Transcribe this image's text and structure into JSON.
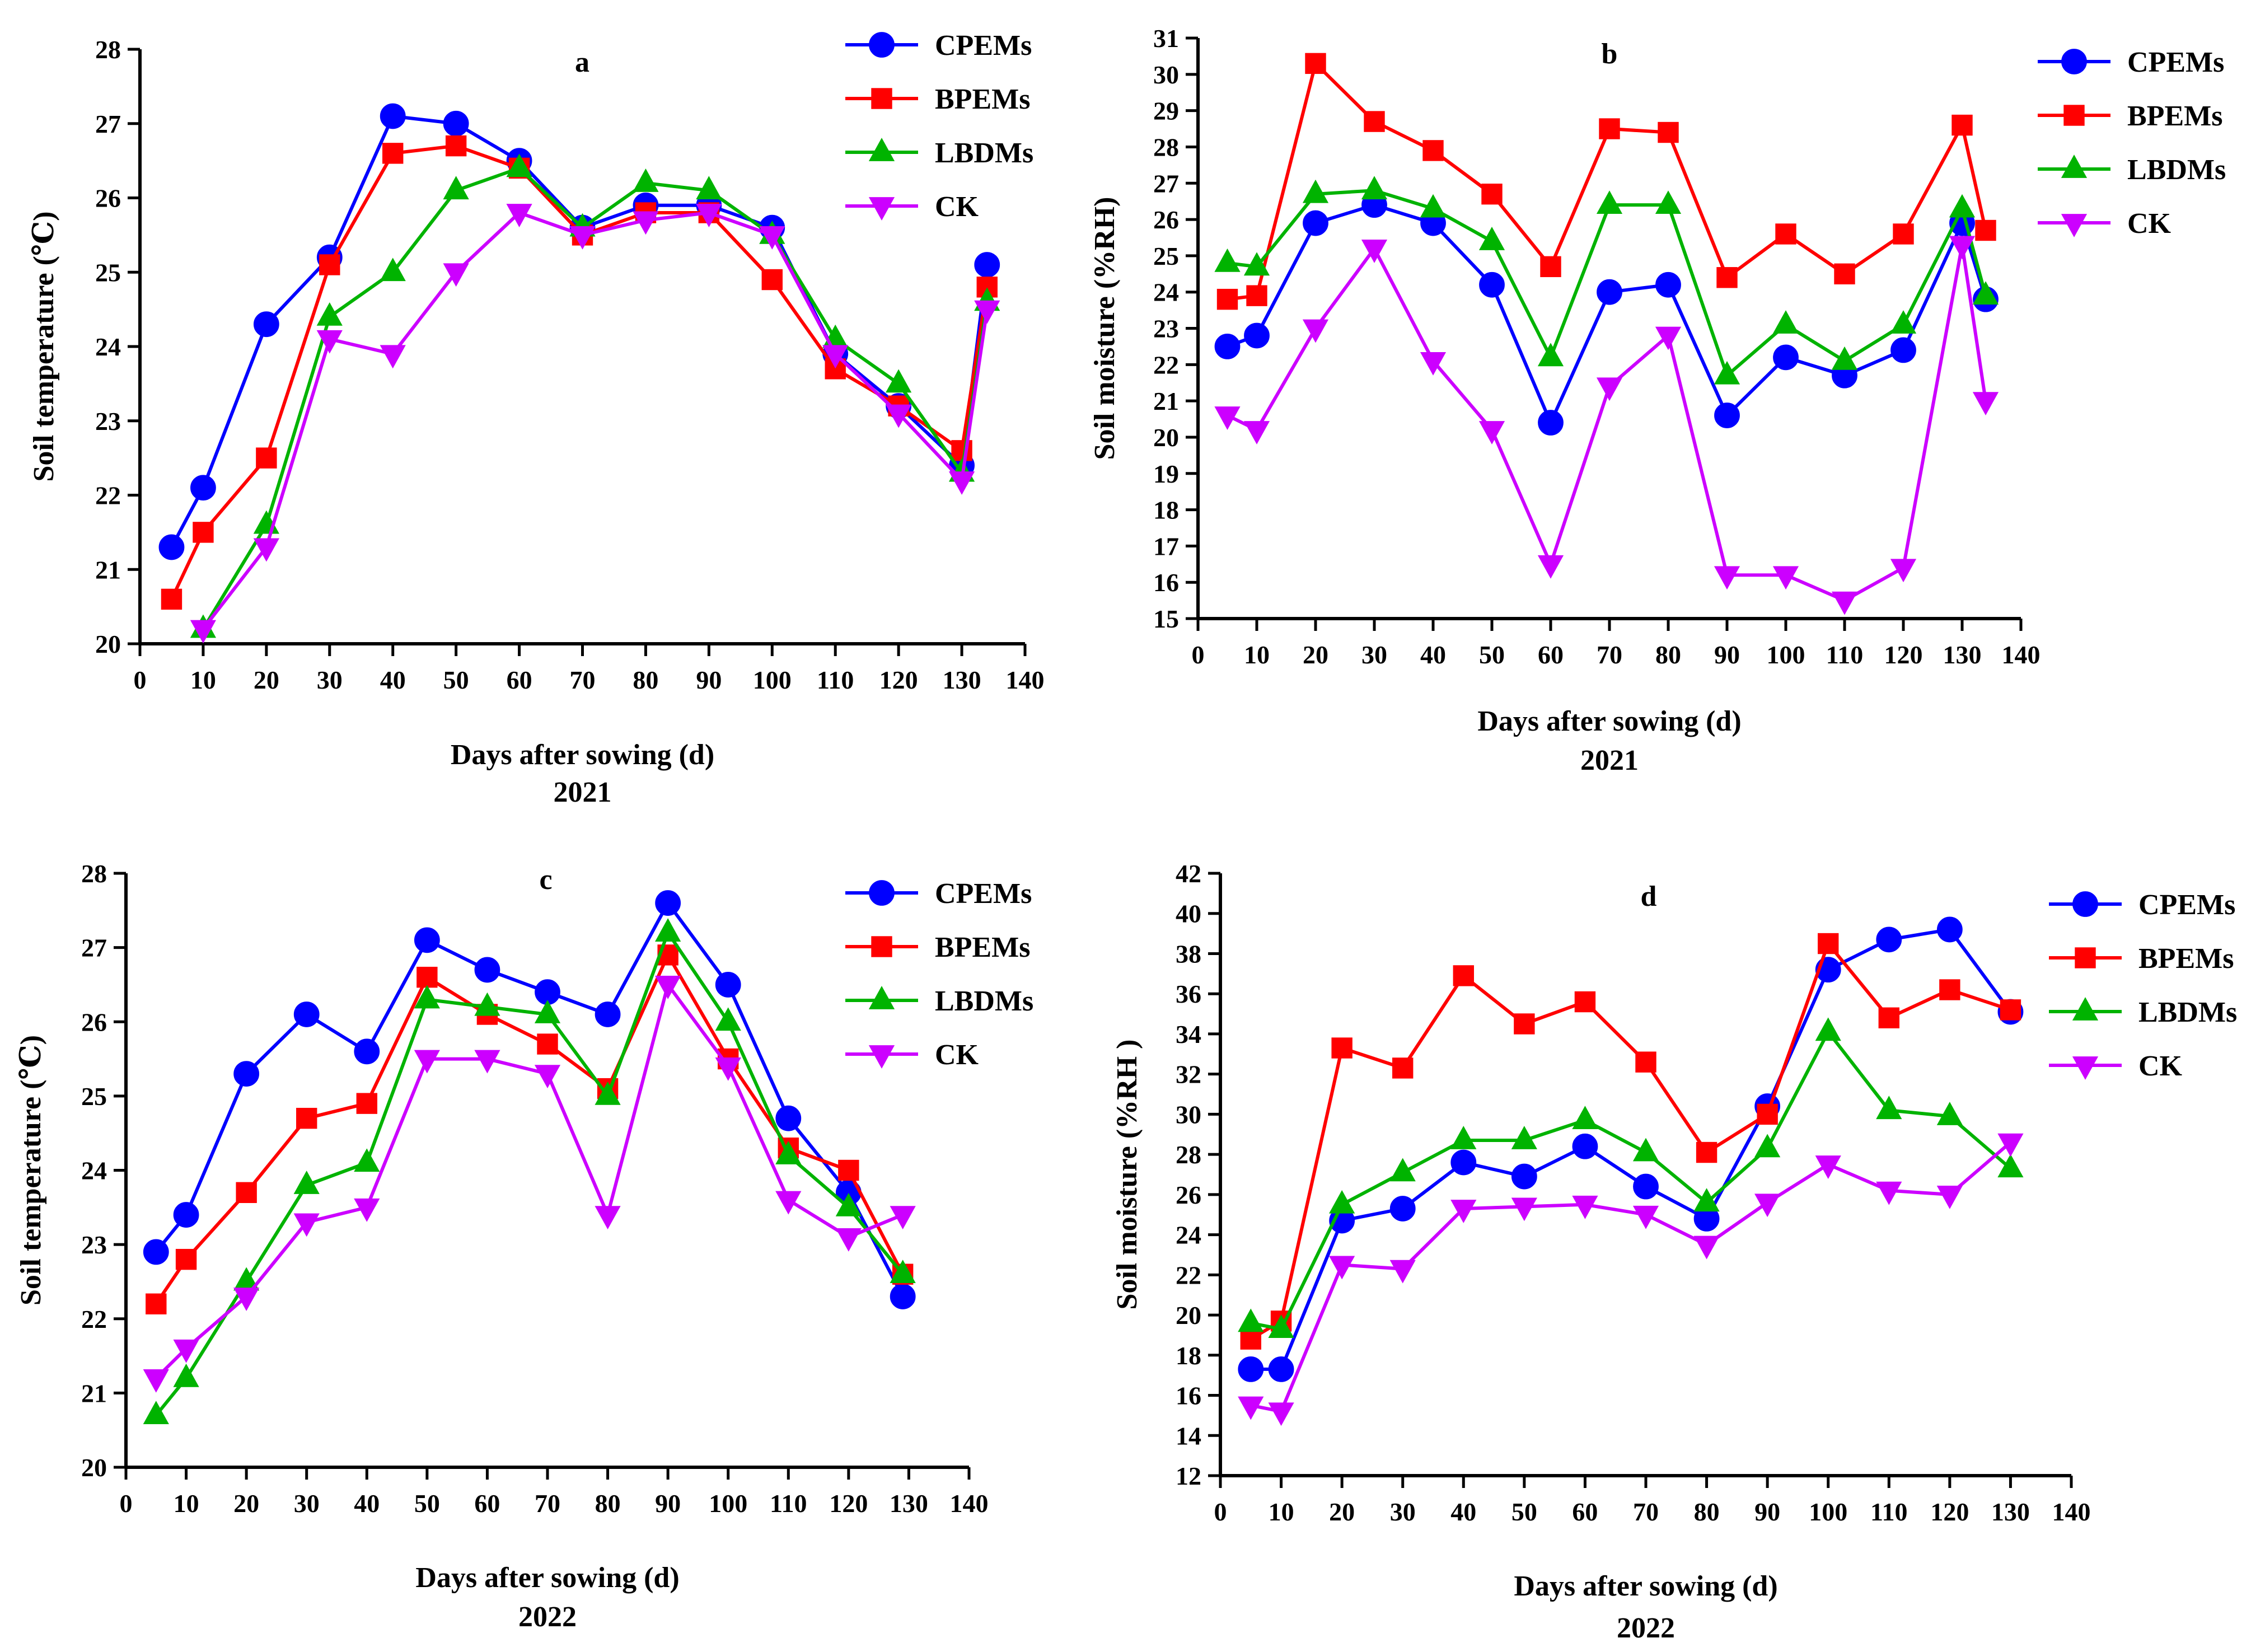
{
  "colors": {
    "CPEMs": "#0000ff",
    "BPEMs": "#ff0000",
    "LBDMs": "#00b300",
    "CK": "#cc00ff"
  },
  "markers": {
    "CPEMs": "circle",
    "BPEMs": "square",
    "LBDMs": "triangle-up",
    "CK": "triangle-down"
  },
  "chart_data": [
    {
      "type": "line",
      "title": "a",
      "xlabel": "Days after sowing (d)",
      "year": "2021",
      "ylabel": "Soil temperature (℃)",
      "xlim": [
        0,
        140
      ],
      "ylim": [
        20,
        28
      ],
      "xticks": [
        0,
        10,
        20,
        30,
        40,
        50,
        60,
        70,
        80,
        90,
        100,
        110,
        120,
        130,
        140
      ],
      "yticks": [
        20,
        21,
        22,
        23,
        24,
        25,
        26,
        27,
        28
      ],
      "x": [
        5,
        10,
        20,
        30,
        40,
        50,
        60,
        70,
        80,
        90,
        100,
        110,
        120,
        130,
        134
      ],
      "legend_position": "top-right",
      "series": [
        {
          "name": "CPEMs",
          "values": [
            21.3,
            22.1,
            24.3,
            25.2,
            27.1,
            27.0,
            26.5,
            25.6,
            25.9,
            25.9,
            25.6,
            23.9,
            23.2,
            22.4,
            25.1
          ]
        },
        {
          "name": "BPEMs",
          "values": [
            20.6,
            21.5,
            22.5,
            25.1,
            26.6,
            26.7,
            26.4,
            25.5,
            25.8,
            25.8,
            24.9,
            23.7,
            23.2,
            22.6,
            24.8
          ]
        },
        {
          "name": "LBDMs",
          "values": [
            null,
            20.2,
            21.6,
            24.4,
            25.0,
            26.1,
            26.4,
            25.6,
            26.2,
            26.1,
            25.5,
            24.1,
            23.5,
            22.3,
            24.6
          ]
        },
        {
          "name": "CK",
          "values": [
            null,
            20.2,
            21.3,
            24.1,
            23.9,
            25.0,
            25.8,
            25.5,
            25.7,
            25.8,
            25.5,
            23.9,
            23.1,
            22.2,
            24.5
          ]
        }
      ]
    },
    {
      "type": "line",
      "title": "b",
      "xlabel": "Days after sowing (d)",
      "year": "2021",
      "ylabel": "Soil moisture (%RH)",
      "xlim": [
        0,
        140
      ],
      "ylim": [
        15,
        31
      ],
      "xticks": [
        0,
        10,
        20,
        30,
        40,
        50,
        60,
        70,
        80,
        90,
        100,
        110,
        120,
        130,
        140
      ],
      "yticks": [
        15,
        16,
        17,
        18,
        19,
        20,
        21,
        22,
        23,
        24,
        25,
        26,
        27,
        28,
        29,
        30,
        31
      ],
      "x": [
        5,
        10,
        20,
        30,
        40,
        50,
        60,
        70,
        80,
        90,
        100,
        110,
        120,
        130,
        134
      ],
      "legend_position": "top-right",
      "series": [
        {
          "name": "CPEMs",
          "values": [
            22.5,
            22.8,
            25.9,
            26.4,
            25.9,
            24.2,
            20.4,
            24.0,
            24.2,
            20.6,
            22.2,
            21.7,
            22.4,
            25.9,
            23.8
          ]
        },
        {
          "name": "BPEMs",
          "values": [
            23.8,
            23.9,
            30.3,
            28.7,
            27.9,
            26.7,
            24.7,
            28.5,
            28.4,
            24.4,
            25.6,
            24.5,
            25.6,
            28.6,
            25.7
          ]
        },
        {
          "name": "LBDMs",
          "values": [
            24.8,
            24.7,
            26.7,
            26.8,
            26.3,
            25.4,
            22.2,
            26.4,
            26.4,
            21.7,
            23.1,
            22.1,
            23.1,
            26.3,
            23.9
          ]
        },
        {
          "name": "CK",
          "values": [
            20.6,
            20.2,
            23.0,
            25.2,
            22.1,
            20.2,
            16.5,
            21.4,
            22.8,
            16.2,
            16.2,
            15.5,
            16.4,
            25.3,
            21.0
          ]
        }
      ]
    },
    {
      "type": "line",
      "title": "c",
      "xlabel": "Days after sowing (d)",
      "year": "2022",
      "ylabel": "Soil temperature (℃)",
      "xlim": [
        0,
        140
      ],
      "ylim": [
        20,
        28
      ],
      "xticks": [
        0,
        10,
        20,
        30,
        40,
        50,
        60,
        70,
        80,
        90,
        100,
        110,
        120,
        130,
        140
      ],
      "yticks": [
        20,
        21,
        22,
        23,
        24,
        25,
        26,
        27,
        28
      ],
      "x": [
        5,
        10,
        20,
        30,
        40,
        50,
        60,
        70,
        80,
        90,
        100,
        110,
        120,
        129
      ],
      "legend_position": "top-right",
      "series": [
        {
          "name": "CPEMs",
          "values": [
            22.9,
            23.4,
            25.3,
            26.1,
            25.6,
            27.1,
            26.7,
            26.4,
            26.1,
            27.6,
            26.5,
            24.7,
            23.7,
            22.3
          ]
        },
        {
          "name": "BPEMs",
          "values": [
            22.2,
            22.8,
            23.7,
            24.7,
            24.9,
            26.6,
            26.1,
            25.7,
            25.1,
            26.9,
            25.5,
            24.3,
            24.0,
            22.6
          ]
        },
        {
          "name": "LBDMs",
          "values": [
            20.7,
            21.2,
            22.5,
            23.8,
            24.1,
            26.3,
            26.2,
            26.1,
            25.0,
            27.2,
            26.0,
            24.2,
            23.5,
            22.6
          ]
        },
        {
          "name": "CK",
          "values": [
            21.2,
            21.6,
            22.3,
            23.3,
            23.5,
            25.5,
            25.5,
            25.3,
            23.4,
            26.5,
            25.4,
            23.6,
            23.1,
            23.4
          ]
        }
      ]
    },
    {
      "type": "line",
      "title": "d",
      "xlabel": "Days after sowing (d)",
      "year": "2022",
      "ylabel": "Soil moisture (%RH )",
      "xlim": [
        0,
        140
      ],
      "ylim": [
        12,
        42
      ],
      "xticks": [
        0,
        10,
        20,
        30,
        40,
        50,
        60,
        70,
        80,
        90,
        100,
        110,
        120,
        130,
        140
      ],
      "yticks": [
        12,
        14,
        16,
        18,
        20,
        22,
        24,
        26,
        28,
        30,
        32,
        34,
        36,
        38,
        40,
        42
      ],
      "x": [
        5,
        10,
        20,
        30,
        40,
        50,
        60,
        70,
        80,
        90,
        100,
        110,
        120,
        130
      ],
      "legend_position": "top-right",
      "series": [
        {
          "name": "CPEMs",
          "values": [
            17.3,
            17.3,
            24.7,
            25.3,
            27.6,
            26.9,
            28.4,
            26.4,
            24.8,
            30.4,
            37.2,
            38.7,
            39.2,
            35.1
          ]
        },
        {
          "name": "BPEMs",
          "values": [
            18.8,
            19.7,
            33.3,
            32.3,
            36.9,
            34.5,
            35.6,
            32.6,
            28.1,
            30.0,
            38.5,
            34.8,
            36.2,
            35.2
          ]
        },
        {
          "name": "LBDMs",
          "values": [
            19.6,
            19.3,
            25.5,
            27.1,
            28.7,
            28.7,
            29.7,
            28.1,
            25.6,
            28.3,
            34.1,
            30.2,
            29.9,
            27.3
          ]
        },
        {
          "name": "CK",
          "values": [
            15.5,
            15.2,
            22.5,
            22.3,
            25.3,
            25.4,
            25.5,
            25.0,
            23.5,
            25.6,
            27.5,
            26.2,
            26.0,
            28.6
          ]
        }
      ]
    }
  ]
}
